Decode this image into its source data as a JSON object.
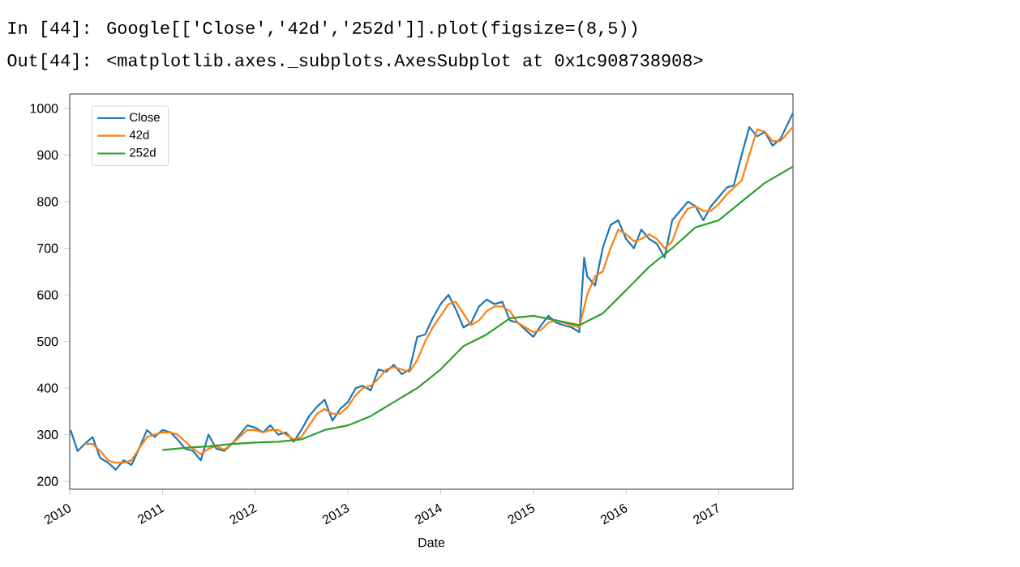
{
  "chart_data": {
    "type": "line",
    "xlabel": "Date",
    "legend": "top left",
    "grid": false,
    "annotations": [
      "In [44]: Google[['Close','42d','252d']].plot(figsize=(8,5))",
      "Out[44]: <matplotlib.axes._subplots.AxesSubplot at 0x1c908738908>"
    ],
    "xlim": [
      "2010-01-01",
      "2017-10-20"
    ],
    "ylim": [
      183,
      1031
    ],
    "xticks": [
      {
        "value": "2010",
        "label": "2010"
      },
      {
        "value": "2011",
        "label": "2011"
      },
      {
        "value": "2012",
        "label": "2012"
      },
      {
        "value": "2013",
        "label": "2013"
      },
      {
        "value": "2014",
        "label": "2014"
      },
      {
        "value": "2015",
        "label": "2015"
      },
      {
        "value": "2016",
        "label": "2016"
      },
      {
        "value": "2017",
        "label": "2017"
      }
    ],
    "yticks": [
      200,
      300,
      400,
      500,
      600,
      700,
      800,
      900,
      1000
    ],
    "series": [
      {
        "name": "Close",
        "color": "#1f77b4",
        "x": [
          "2010-01-04",
          "2010-02",
          "2010-03",
          "2010-04",
          "2010-05",
          "2010-06",
          "2010-07",
          "2010-08",
          "2010-09",
          "2010-10",
          "2010-11",
          "2010-12",
          "2011-01",
          "2011-02",
          "2011-03",
          "2011-04",
          "2011-05",
          "2011-06",
          "2011-07",
          "2011-08",
          "2011-09",
          "2011-10",
          "2011-11",
          "2011-12",
          "2012-01",
          "2012-02",
          "2012-03",
          "2012-04",
          "2012-05",
          "2012-06",
          "2012-07",
          "2012-08",
          "2012-09",
          "2012-10",
          "2012-11",
          "2012-12",
          "2013-01",
          "2013-02",
          "2013-03",
          "2013-04",
          "2013-05",
          "2013-06",
          "2013-07",
          "2013-08",
          "2013-09",
          "2013-10",
          "2013-11",
          "2013-12",
          "2014-01",
          "2014-02",
          "2014-03",
          "2014-04",
          "2014-05",
          "2014-06",
          "2014-07",
          "2014-08",
          "2014-09",
          "2014-10",
          "2014-11",
          "2014-12",
          "2015-01",
          "2015-02",
          "2015-03",
          "2015-04",
          "2015-05",
          "2015-06",
          "2015-07",
          "2015-07-20",
          "2015-08",
          "2015-09",
          "2015-10",
          "2015-11",
          "2015-12",
          "2016-01",
          "2016-02",
          "2016-03",
          "2016-04",
          "2016-05",
          "2016-06",
          "2016-07",
          "2016-08",
          "2016-09",
          "2016-10",
          "2016-11",
          "2016-12",
          "2017-01",
          "2017-02",
          "2017-03",
          "2017-04",
          "2017-05",
          "2017-06",
          "2017-07",
          "2017-08",
          "2017-09",
          "2017-10-20"
        ],
        "values": [
          310,
          265,
          280,
          295,
          250,
          240,
          225,
          245,
          235,
          270,
          310,
          295,
          310,
          305,
          290,
          270,
          265,
          245,
          300,
          270,
          265,
          280,
          300,
          320,
          315,
          305,
          320,
          300,
          305,
          285,
          310,
          340,
          360,
          375,
          330,
          355,
          370,
          400,
          405,
          395,
          440,
          435,
          450,
          430,
          440,
          510,
          515,
          550,
          580,
          600,
          570,
          530,
          540,
          575,
          590,
          580,
          585,
          545,
          540,
          525,
          510,
          535,
          555,
          540,
          535,
          530,
          520,
          680,
          640,
          620,
          700,
          750,
          760,
          720,
          700,
          740,
          720,
          710,
          680,
          760,
          780,
          800,
          790,
          760,
          790,
          810,
          830,
          835,
          900,
          960,
          940,
          950,
          920,
          935,
          990
        ]
      },
      {
        "name": "42d",
        "color": "#ff7f0e",
        "x": [
          "2010-03",
          "2010-04",
          "2010-05",
          "2010-06",
          "2010-07",
          "2010-08",
          "2010-09",
          "2010-10",
          "2010-11",
          "2010-12",
          "2011-01",
          "2011-02",
          "2011-03",
          "2011-04",
          "2011-05",
          "2011-06",
          "2011-07",
          "2011-08",
          "2011-09",
          "2011-10",
          "2011-11",
          "2011-12",
          "2012-01",
          "2012-02",
          "2012-03",
          "2012-04",
          "2012-05",
          "2012-06",
          "2012-07",
          "2012-08",
          "2012-09",
          "2012-10",
          "2012-11",
          "2012-12",
          "2013-01",
          "2013-02",
          "2013-03",
          "2013-04",
          "2013-05",
          "2013-06",
          "2013-07",
          "2013-08",
          "2013-09",
          "2013-10",
          "2013-11",
          "2013-12",
          "2014-01",
          "2014-02",
          "2014-03",
          "2014-04",
          "2014-05",
          "2014-06",
          "2014-07",
          "2014-08",
          "2014-09",
          "2014-10",
          "2014-11",
          "2014-12",
          "2015-01",
          "2015-02",
          "2015-03",
          "2015-04",
          "2015-05",
          "2015-06",
          "2015-07",
          "2015-08",
          "2015-09",
          "2015-10",
          "2015-11",
          "2015-12",
          "2016-01",
          "2016-02",
          "2016-03",
          "2016-04",
          "2016-05",
          "2016-06",
          "2016-07",
          "2016-08",
          "2016-09",
          "2016-10",
          "2016-11",
          "2016-12",
          "2017-01",
          "2017-02",
          "2017-03",
          "2017-04",
          "2017-05",
          "2017-06",
          "2017-07",
          "2017-08",
          "2017-09",
          "2017-10-20"
        ],
        "values": [
          280,
          280,
          265,
          245,
          240,
          240,
          245,
          270,
          295,
          300,
          305,
          305,
          300,
          285,
          270,
          258,
          270,
          275,
          268,
          280,
          295,
          310,
          310,
          305,
          310,
          310,
          300,
          290,
          295,
          320,
          345,
          355,
          345,
          345,
          360,
          385,
          400,
          405,
          420,
          440,
          445,
          440,
          435,
          460,
          500,
          530,
          555,
          580,
          585,
          560,
          535,
          545,
          565,
          575,
          575,
          565,
          540,
          530,
          520,
          525,
          540,
          545,
          540,
          535,
          530,
          600,
          640,
          650,
          700,
          740,
          730,
          715,
          720,
          730,
          720,
          700,
          715,
          760,
          785,
          790,
          780,
          780,
          795,
          815,
          830,
          845,
          900,
          955,
          950,
          930,
          930,
          960
        ]
      },
      {
        "name": "252d",
        "color": "#2ca02c",
        "x": [
          "2011-01",
          "2011-04",
          "2011-07",
          "2011-10",
          "2012-01",
          "2012-04",
          "2012-07",
          "2012-10",
          "2013-01",
          "2013-04",
          "2013-07",
          "2013-10",
          "2014-01",
          "2014-04",
          "2014-07",
          "2014-10",
          "2015-01",
          "2015-04",
          "2015-07",
          "2015-10",
          "2016-01",
          "2016-04",
          "2016-07",
          "2016-10",
          "2017-01",
          "2017-04",
          "2017-07",
          "2017-10-20"
        ],
        "values": [
          267,
          272,
          275,
          280,
          283,
          285,
          290,
          310,
          320,
          340,
          370,
          400,
          440,
          490,
          515,
          550,
          555,
          545,
          535,
          560,
          610,
          660,
          700,
          745,
          760,
          800,
          840,
          875
        ]
      }
    ]
  }
}
